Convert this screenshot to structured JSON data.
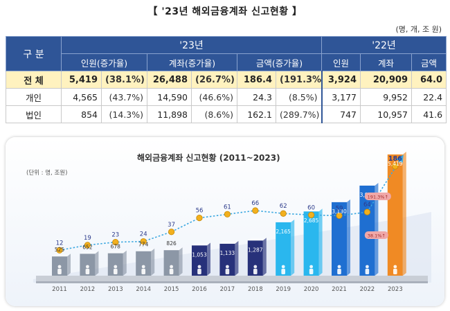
{
  "title": "【 '23년 해외금융계좌 신고현황 】",
  "unit": "(명, 개, 조 원)",
  "table": {
    "head_label": "구 분",
    "year_a": "'23년",
    "year_b": "'22년",
    "col_a1": "인원(증가율)",
    "col_a2": "계좌(증가율)",
    "col_a3": "금액(증가율)",
    "col_b1": "인원",
    "col_b2": "계좌",
    "col_b3": "금액",
    "rows": [
      {
        "label": "전 체",
        "p": "5,419",
        "pg": "(38.1%)",
        "a": "26,488",
        "ag": "(26.7%)",
        "m": "186.4",
        "mg": "(191.3%)",
        "p22": "3,924",
        "a22": "20,909",
        "m22": "64.0"
      },
      {
        "label": "개인",
        "p": "4,565",
        "pg": "(43.7%)",
        "a": "14,590",
        "ag": "(46.6%)",
        "m": "24.3",
        "mg": "(8.5%)",
        "p22": "3,177",
        "a22": "9,952",
        "m22": "22.4"
      },
      {
        "label": "법인",
        "p": "854",
        "pg": "(14.3%)",
        "a": "11,898",
        "ag": "(8.6%)",
        "m": "162.1",
        "mg": "(289.7%)",
        "p22": "747",
        "a22": "10,957",
        "m22": "41.6"
      }
    ]
  },
  "chart_data": {
    "type": "bar",
    "title": "해외금융계좌 신고현황 (2011~2023)",
    "unit_label": "(단위 : 명, 조원)",
    "categories": [
      "2011",
      "2012",
      "2013",
      "2014",
      "2015",
      "2016",
      "2017",
      "2018",
      "2019",
      "2020",
      "2021",
      "2022",
      "2023"
    ],
    "series": [
      {
        "kind": "bar",
        "values": [
          525,
          652,
          678,
          774,
          826,
          1053,
          1133,
          1287,
          2165,
          2685,
          3130,
          3924,
          5419
        ],
        "labels": [
          "525",
          "652",
          "678",
          "774",
          "826",
          "1,053",
          "1,133",
          "1,287",
          "2,165",
          "2,685",
          "3,130",
          "3,924",
          "5,419"
        ]
      },
      {
        "kind": "line",
        "values": [
          12,
          19,
          23,
          24,
          37,
          56,
          61,
          66,
          62,
          60,
          59,
          64,
          186
        ],
        "labels": [
          "12",
          "19",
          "23",
          "24",
          "37",
          "56",
          "61",
          "66",
          "62",
          "60",
          "59",
          "64",
          "186"
        ]
      }
    ],
    "annotations": [
      {
        "text": "191.3%↑",
        "category": "2023",
        "series": "line"
      },
      {
        "text": "38.1%↑",
        "category": "2023",
        "series": "bar"
      }
    ],
    "colors": {
      "bar_gray": "#8c97a6",
      "bar_navy": "#27317a",
      "bar_blue": "#1f6fd1",
      "bar_cyan": "#2ab7ee",
      "bar_orange": "#f08a24",
      "line": "#3aa7e0",
      "coin": "#f2b01e",
      "badge": "#f0a8a8"
    }
  }
}
